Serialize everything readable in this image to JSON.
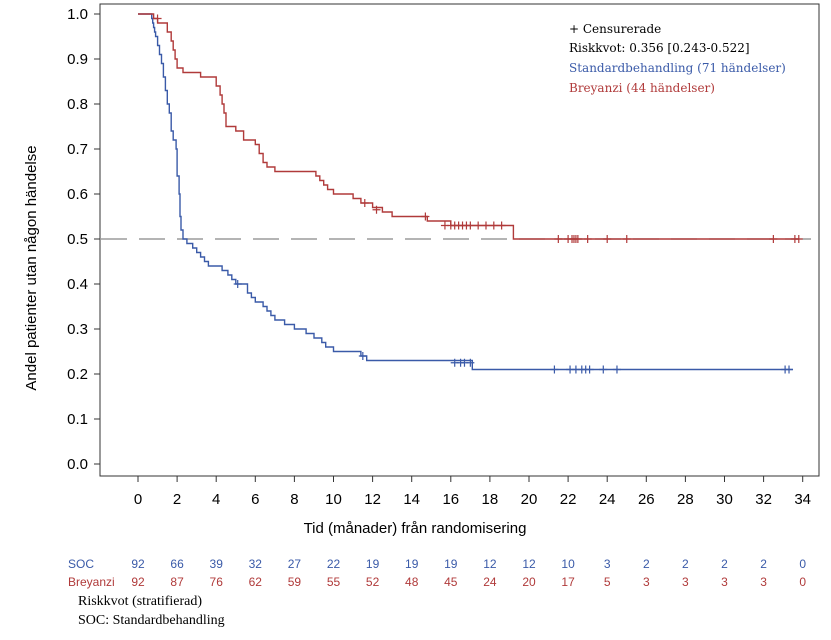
{
  "chart_data": {
    "type": "line",
    "xlabel": "Tid (månader) från randomisering",
    "ylabel": "Andel patienter utan någon händelse",
    "xlim": [
      -2,
      35
    ],
    "ylim": [
      -0.02,
      1.02
    ],
    "xticks": [
      0,
      2,
      4,
      6,
      8,
      10,
      12,
      14,
      16,
      18,
      20,
      22,
      24,
      26,
      28,
      30,
      32,
      34
    ],
    "xtick_labels": [
      "0",
      "2",
      "4",
      "6",
      "8",
      "10",
      "12",
      "14",
      "16",
      "18",
      "20",
      "22",
      "24",
      "26",
      "28",
      "30",
      "32",
      "34"
    ],
    "yticks": [
      0,
      0.1,
      0.2,
      0.3,
      0.4,
      0.5,
      0.6,
      0.7,
      0.8,
      0.9,
      1.0
    ],
    "ytick_labels": [
      "0.0",
      "0.1",
      "0.2",
      "0.3",
      "0.4",
      "0.5",
      "0.6",
      "0.7",
      "0.8",
      "0.9",
      "1.0"
    ],
    "reference_line": 0.5,
    "legend": {
      "censored": "+ Censurerade",
      "hazard": "Riskkvot: 0.356 [0.243-0.522]",
      "soc": "Standardbehandling (71 händelser)",
      "breyanzi": "Breyanzi (44 händelser)"
    },
    "series": [
      {
        "name": "SOC",
        "color": "#3a5aa8",
        "steps": [
          [
            0,
            1.0
          ],
          [
            0.7,
            0.99
          ],
          [
            0.75,
            0.98
          ],
          [
            0.8,
            0.97
          ],
          [
            0.85,
            0.96
          ],
          [
            0.9,
            0.95
          ],
          [
            1.0,
            0.93
          ],
          [
            1.1,
            0.91
          ],
          [
            1.2,
            0.89
          ],
          [
            1.3,
            0.86
          ],
          [
            1.4,
            0.83
          ],
          [
            1.5,
            0.8
          ],
          [
            1.6,
            0.78
          ],
          [
            1.7,
            0.74
          ],
          [
            1.8,
            0.72
          ],
          [
            1.95,
            0.7
          ],
          [
            2.0,
            0.64
          ],
          [
            2.1,
            0.6
          ],
          [
            2.15,
            0.55
          ],
          [
            2.2,
            0.52
          ],
          [
            2.3,
            0.5
          ],
          [
            2.5,
            0.49
          ],
          [
            2.8,
            0.48
          ],
          [
            3.0,
            0.47
          ],
          [
            3.2,
            0.46
          ],
          [
            3.4,
            0.45
          ],
          [
            3.6,
            0.44
          ],
          [
            4.3,
            0.43
          ],
          [
            4.6,
            0.42
          ],
          [
            4.8,
            0.41
          ],
          [
            5.0,
            0.4
          ],
          [
            5.6,
            0.38
          ],
          [
            5.8,
            0.37
          ],
          [
            6.0,
            0.36
          ],
          [
            6.4,
            0.35
          ],
          [
            6.6,
            0.34
          ],
          [
            6.8,
            0.33
          ],
          [
            7.0,
            0.32
          ],
          [
            7.5,
            0.31
          ],
          [
            8.0,
            0.3
          ],
          [
            8.6,
            0.29
          ],
          [
            9.0,
            0.28
          ],
          [
            9.4,
            0.27
          ],
          [
            9.6,
            0.26
          ],
          [
            10.0,
            0.25
          ],
          [
            11.4,
            0.24
          ],
          [
            11.7,
            0.23
          ],
          [
            17.1,
            0.21
          ],
          [
            33.5,
            0.21
          ]
        ],
        "censored": [
          [
            5.1,
            0.4
          ],
          [
            11.5,
            0.24
          ],
          [
            16.2,
            0.225
          ],
          [
            16.5,
            0.225
          ],
          [
            16.7,
            0.225
          ],
          [
            17.0,
            0.225
          ],
          [
            21.3,
            0.21
          ],
          [
            22.1,
            0.21
          ],
          [
            22.4,
            0.21
          ],
          [
            22.7,
            0.21
          ],
          [
            22.9,
            0.21
          ],
          [
            23.1,
            0.21
          ],
          [
            23.8,
            0.21
          ],
          [
            24.5,
            0.21
          ],
          [
            33.1,
            0.21
          ],
          [
            33.3,
            0.21
          ]
        ]
      },
      {
        "name": "Breyanzi",
        "color": "#b03a3a",
        "steps": [
          [
            0,
            1.0
          ],
          [
            0.8,
            0.99
          ],
          [
            1.0,
            0.98
          ],
          [
            1.5,
            0.96
          ],
          [
            1.7,
            0.94
          ],
          [
            1.8,
            0.92
          ],
          [
            1.9,
            0.9
          ],
          [
            2.0,
            0.88
          ],
          [
            2.3,
            0.87
          ],
          [
            3.2,
            0.86
          ],
          [
            4.0,
            0.84
          ],
          [
            4.2,
            0.82
          ],
          [
            4.3,
            0.8
          ],
          [
            4.4,
            0.78
          ],
          [
            4.5,
            0.75
          ],
          [
            5.0,
            0.74
          ],
          [
            5.4,
            0.72
          ],
          [
            6.0,
            0.71
          ],
          [
            6.2,
            0.69
          ],
          [
            6.4,
            0.67
          ],
          [
            6.6,
            0.66
          ],
          [
            7.0,
            0.65
          ],
          [
            9.1,
            0.64
          ],
          [
            9.3,
            0.63
          ],
          [
            9.5,
            0.62
          ],
          [
            9.7,
            0.61
          ],
          [
            10.0,
            0.6
          ],
          [
            11.0,
            0.59
          ],
          [
            11.4,
            0.58
          ],
          [
            12.0,
            0.57
          ],
          [
            12.5,
            0.56
          ],
          [
            13.0,
            0.55
          ],
          [
            14.8,
            0.54
          ],
          [
            16.0,
            0.53
          ],
          [
            19.2,
            0.5
          ],
          [
            33.8,
            0.5
          ]
        ],
        "censored": [
          [
            1.0,
            0.99
          ],
          [
            11.6,
            0.58
          ],
          [
            12.2,
            0.565
          ],
          [
            14.7,
            0.55
          ],
          [
            15.7,
            0.53
          ],
          [
            16.0,
            0.53
          ],
          [
            16.2,
            0.53
          ],
          [
            16.4,
            0.53
          ],
          [
            16.6,
            0.53
          ],
          [
            16.8,
            0.53
          ],
          [
            17.0,
            0.53
          ],
          [
            17.4,
            0.53
          ],
          [
            17.8,
            0.53
          ],
          [
            18.2,
            0.53
          ],
          [
            18.6,
            0.53
          ],
          [
            21.5,
            0.5
          ],
          [
            22.0,
            0.5
          ],
          [
            22.2,
            0.5
          ],
          [
            22.3,
            0.5
          ],
          [
            22.4,
            0.5
          ],
          [
            22.5,
            0.5
          ],
          [
            23.0,
            0.5
          ],
          [
            24.0,
            0.5
          ],
          [
            25.0,
            0.5
          ],
          [
            32.5,
            0.5
          ],
          [
            33.6,
            0.5
          ],
          [
            33.8,
            0.5
          ]
        ]
      }
    ],
    "at_risk": {
      "soc_label": "SOC",
      "breyanzi_label": "Breyanzi",
      "times": [
        0,
        2,
        4,
        6,
        8,
        10,
        12,
        14,
        16,
        18,
        20,
        22,
        24,
        26,
        28,
        30,
        32,
        34
      ],
      "soc": [
        "92",
        "66",
        "39",
        "32",
        "27",
        "22",
        "19",
        "19",
        "19",
        "12",
        "12",
        "10",
        "3",
        "2",
        "2",
        "2",
        "2",
        "0"
      ],
      "breyanzi": [
        "92",
        "87",
        "76",
        "62",
        "59",
        "55",
        "52",
        "48",
        "45",
        "24",
        "20",
        "17",
        "5",
        "3",
        "3",
        "3",
        "3",
        "0"
      ]
    }
  },
  "footnotes": {
    "line1": "Riskkvot (stratifierad)",
    "line2": "SOC: Standardbehandling"
  }
}
